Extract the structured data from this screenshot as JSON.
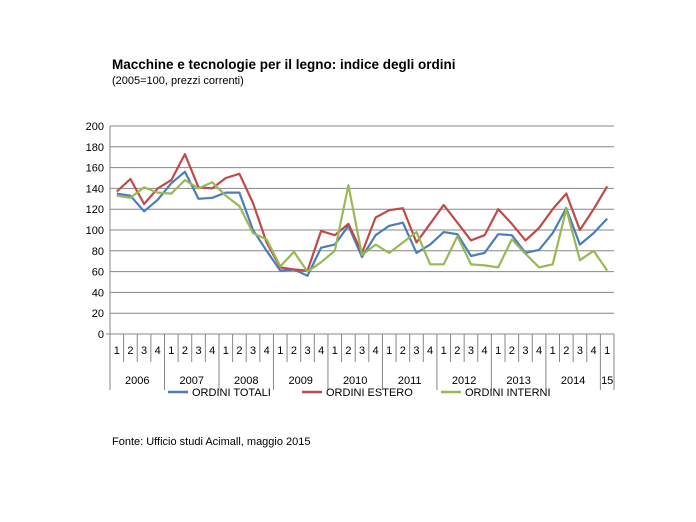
{
  "header": {
    "title": "Macchine e tecnologie per il legno: indice degli ordini",
    "subtitle": "(2005=100, prezzi correnti)"
  },
  "footer": {
    "source": "Fonte: Ufficio studi Acimall, maggio 2015"
  },
  "colors": {
    "ordini_totali": "#4a7ebb",
    "ordini_estero": "#be4b48",
    "ordini_interni": "#98b954",
    "grid": "#878787",
    "axis": "#878787"
  },
  "chart_data": {
    "type": "line",
    "title": "Macchine e tecnologie per il legno: indice degli ordini",
    "subtitle": "(2005=100, prezzi correnti)",
    "quarter_labels": [
      "1",
      "2",
      "3",
      "4",
      "1",
      "2",
      "3",
      "4",
      "1",
      "2",
      "3",
      "4",
      "1",
      "2",
      "3",
      "4",
      "1",
      "2",
      "3",
      "4",
      "1",
      "2",
      "3",
      "4",
      "1",
      "2",
      "3",
      "4",
      "1",
      "2",
      "3",
      "4",
      "1",
      "2",
      "3",
      "4",
      "1"
    ],
    "year_labels": [
      "2006",
      "2007",
      "2008",
      "2009",
      "2010",
      "2011",
      "2012",
      "2013",
      "2014",
      "15"
    ],
    "y_ticks": [
      "0",
      "20",
      "40",
      "60",
      "80",
      "100",
      "120",
      "140",
      "160",
      "180",
      "200"
    ],
    "ylim": [
      0,
      200
    ],
    "grid": true,
    "legend_position": "bottom",
    "series": [
      {
        "name": "ORDINI TOTALI",
        "values": [
          135,
          133,
          118,
          129,
          145,
          156,
          130,
          131,
          136,
          136,
          100,
          80,
          61,
          62,
          56,
          83,
          86,
          104,
          74,
          95,
          104,
          107,
          78,
          86,
          98,
          96,
          75,
          78,
          96,
          95,
          78,
          81,
          97,
          121,
          86,
          97,
          111
        ]
      },
      {
        "name": "ORDINI ESTERO",
        "values": [
          137,
          149,
          125,
          140,
          148,
          173,
          141,
          140,
          150,
          154,
          126,
          88,
          64,
          62,
          61,
          99,
          95,
          106,
          78,
          112,
          119,
          121,
          88,
          106,
          124,
          107,
          90,
          95,
          120,
          106,
          90,
          102,
          120,
          135,
          100,
          120,
          142
        ]
      },
      {
        "name": "ORDINI INTERNI",
        "values": [
          133,
          131,
          141,
          136,
          135,
          148,
          140,
          146,
          133,
          123,
          97,
          91,
          65,
          79,
          60,
          69,
          80,
          143,
          76,
          86,
          78,
          88,
          98,
          67,
          67,
          94,
          67,
          66,
          64,
          91,
          77,
          64,
          67,
          120,
          71,
          80,
          61
        ]
      }
    ]
  }
}
